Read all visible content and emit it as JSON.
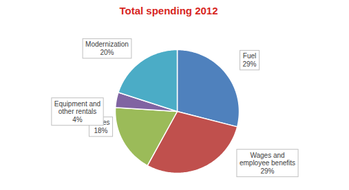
{
  "chart_data": {
    "type": "pie",
    "title": "Total spending 2012",
    "categories": [
      "Fuel",
      "Wages and employee benefits",
      "Taxes",
      "Equipment and other rentals",
      "Modernization"
    ],
    "values": [
      29,
      29,
      18,
      4,
      20
    ],
    "value_labels": [
      "29%",
      "29%",
      "18%",
      "4%",
      "20%"
    ],
    "colors": [
      "#4f81bd",
      "#c0504d",
      "#9bbb59",
      "#8064a2",
      "#4bacc6"
    ],
    "data_labels": true
  }
}
